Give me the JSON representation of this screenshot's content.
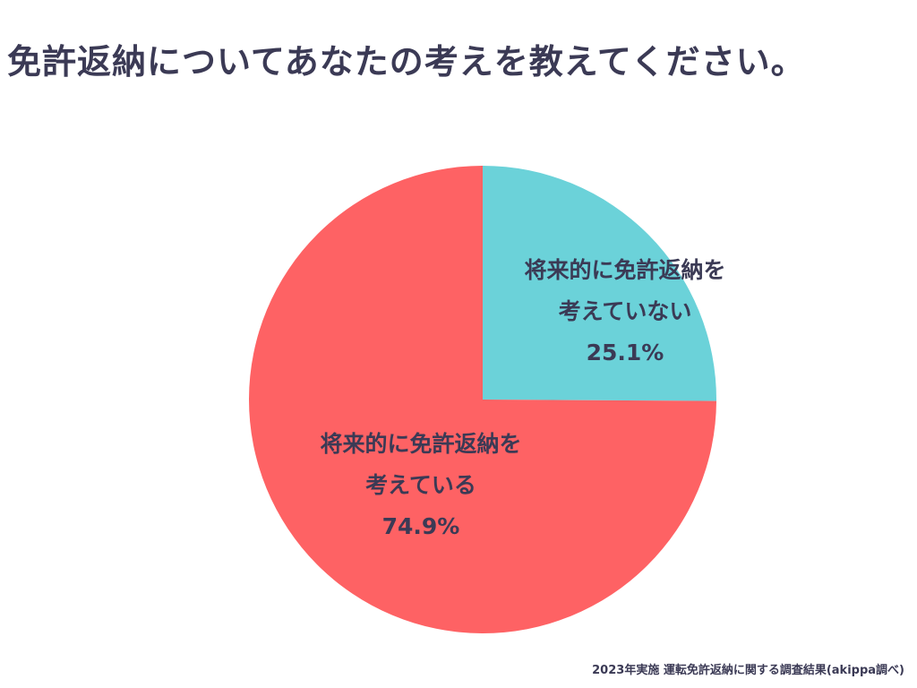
{
  "title": "免許返納についてあなたの考えを教えてください。",
  "source_note": "2023年実施 運転免許返納に関する調査結果(akippa調べ)",
  "colors": {
    "thinking": "#fe6264",
    "not_thinking": "#6bd2d9",
    "text": "#3b3a55"
  },
  "chart_data": {
    "type": "pie",
    "title": "免許返納についてあなたの考えを教えてください。",
    "start": "12 o'clock, clockwise",
    "legend": "none",
    "slices": [
      {
        "name": "将来的に免許返納を考えていない",
        "label_lines": [
          "将来的に免許返納を",
          "考えていない",
          "25.1%"
        ],
        "value": 25.1,
        "color": "#6bd2d9"
      },
      {
        "name": "将来的に免許返納を考えている",
        "label_lines": [
          "将来的に免許返納を",
          "考えている",
          "74.9%"
        ],
        "value": 74.9,
        "color": "#fe6264"
      }
    ]
  }
}
